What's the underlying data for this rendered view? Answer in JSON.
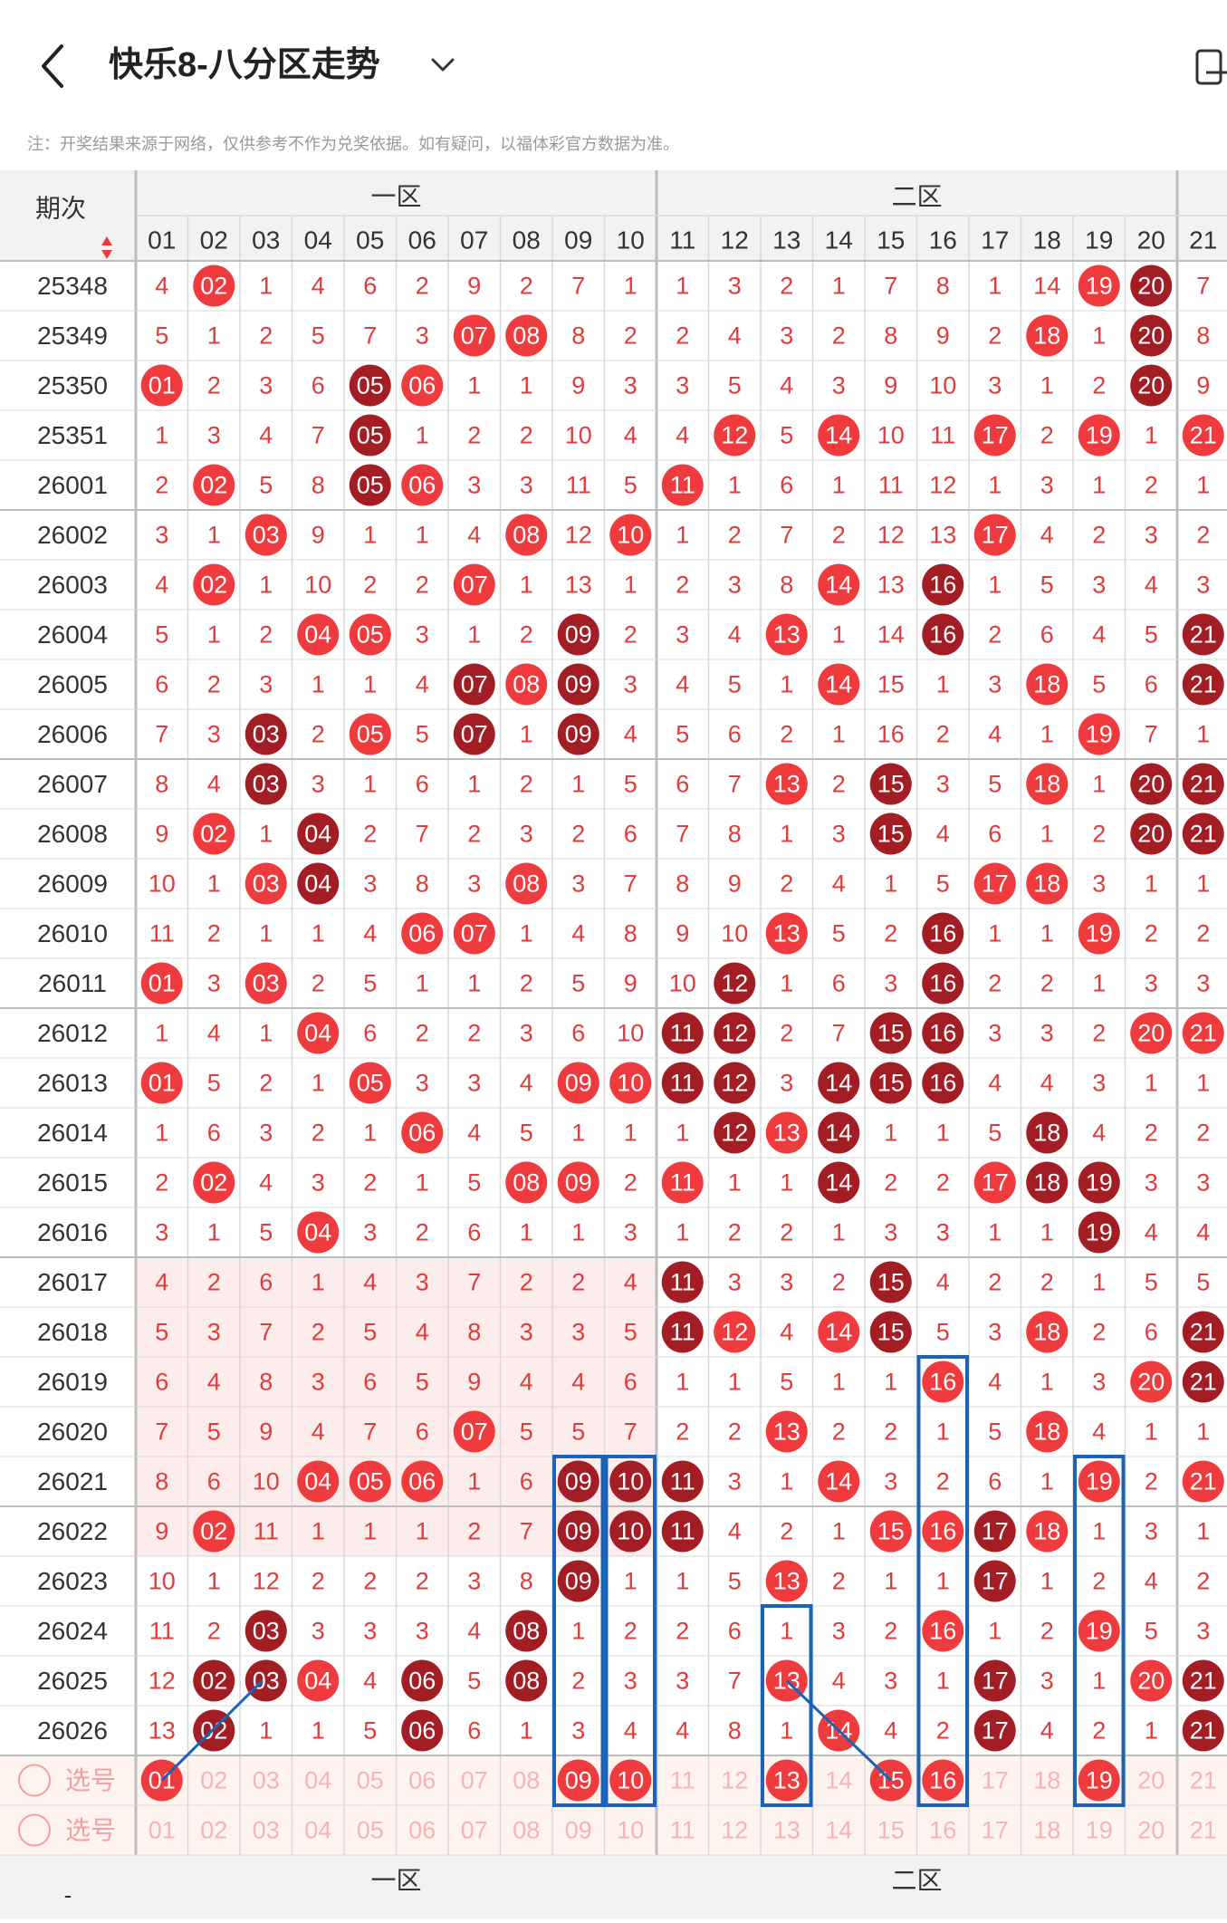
{
  "header": {
    "title": "快乐8-八分区走势",
    "note": "注：开奖结果来源于网络，仅供参考不作为兑奖依据。如有疑问，以福体彩官方数据为准。"
  },
  "icons": {
    "back": "back-arrow-icon",
    "dropdown": "chevron-down-icon",
    "share": "share-icon"
  },
  "colors": {
    "red": "#ef3b3e",
    "dark_red": "#a21e24",
    "pale_red": "#fdecec",
    "header_bg": "#f2f2f2",
    "grid_line": "#d9d9d9",
    "box_blue": "#1a63b8",
    "text_red": "#e03c3c"
  },
  "table": {
    "period_header": "期次",
    "zones": [
      "一区",
      "二区"
    ],
    "columns": [
      "01",
      "02",
      "03",
      "04",
      "05",
      "06",
      "07",
      "08",
      "09",
      "10",
      "11",
      "12",
      "13",
      "14",
      "15",
      "16",
      "17",
      "18",
      "19",
      "20",
      "21"
    ],
    "rows": [
      {
        "period": "25348",
        "cells": [
          "4",
          "02",
          "1",
          "4",
          "6",
          "2",
          "9",
          "2",
          "7",
          "1",
          "1",
          "3",
          "2",
          "1",
          "7",
          "8",
          "1",
          "14",
          "19",
          "20",
          "7"
        ],
        "hits": [
          "02",
          "19",
          "20"
        ]
      },
      {
        "period": "25349",
        "cells": [
          "5",
          "1",
          "2",
          "5",
          "7",
          "3",
          "07",
          "08",
          "8",
          "2",
          "2",
          "4",
          "3",
          "2",
          "8",
          "9",
          "2",
          "18",
          "1",
          "20",
          "8"
        ],
        "hits": [
          "07",
          "08",
          "18",
          "20"
        ]
      },
      {
        "period": "25350",
        "cells": [
          "01",
          "2",
          "3",
          "6",
          "05",
          "06",
          "1",
          "1",
          "9",
          "3",
          "3",
          "5",
          "4",
          "3",
          "9",
          "10",
          "3",
          "1",
          "2",
          "20",
          "9"
        ],
        "hits": [
          "01",
          "05",
          "06",
          "20"
        ]
      },
      {
        "period": "25351",
        "cells": [
          "1",
          "3",
          "4",
          "7",
          "05",
          "1",
          "2",
          "2",
          "10",
          "4",
          "4",
          "12",
          "5",
          "14",
          "10",
          "11",
          "17",
          "2",
          "19",
          "1",
          "21"
        ],
        "hits": [
          "05",
          "12",
          "14",
          "17",
          "19",
          "21"
        ]
      },
      {
        "period": "26001",
        "cells": [
          "2",
          "02",
          "5",
          "8",
          "05",
          "06",
          "3",
          "3",
          "11",
          "5",
          "11",
          "1",
          "6",
          "1",
          "11",
          "12",
          "1",
          "3",
          "1",
          "2",
          "1"
        ],
        "hits": [
          "02",
          "05",
          "06",
          "11"
        ]
      },
      {
        "period": "26002",
        "cells": [
          "3",
          "1",
          "03",
          "9",
          "1",
          "1",
          "4",
          "08",
          "12",
          "10",
          "1",
          "2",
          "7",
          "2",
          "12",
          "13",
          "17",
          "4",
          "2",
          "3",
          "2"
        ],
        "hits": [
          "03",
          "08",
          "10",
          "17"
        ]
      },
      {
        "period": "26003",
        "cells": [
          "4",
          "02",
          "1",
          "10",
          "2",
          "2",
          "07",
          "1",
          "13",
          "1",
          "2",
          "3",
          "8",
          "14",
          "13",
          "16",
          "1",
          "5",
          "3",
          "4",
          "3"
        ],
        "hits": [
          "02",
          "07",
          "14",
          "16"
        ]
      },
      {
        "period": "26004",
        "cells": [
          "5",
          "1",
          "2",
          "04",
          "05",
          "3",
          "1",
          "2",
          "09",
          "2",
          "3",
          "4",
          "13",
          "1",
          "14",
          "16",
          "2",
          "6",
          "4",
          "5",
          "21"
        ],
        "hits": [
          "04",
          "05",
          "09",
          "13",
          "16",
          "21"
        ]
      },
      {
        "period": "26005",
        "cells": [
          "6",
          "2",
          "3",
          "1",
          "1",
          "4",
          "07",
          "08",
          "09",
          "3",
          "4",
          "5",
          "1",
          "14",
          "15",
          "1",
          "3",
          "18",
          "5",
          "6",
          "21"
        ],
        "hits": [
          "07",
          "08",
          "09",
          "14",
          "18",
          "21"
        ]
      },
      {
        "period": "26006",
        "cells": [
          "7",
          "3",
          "03",
          "2",
          "05",
          "5",
          "07",
          "1",
          "09",
          "4",
          "5",
          "6",
          "2",
          "1",
          "16",
          "2",
          "4",
          "1",
          "19",
          "7",
          "1"
        ],
        "hits": [
          "03",
          "05",
          "07",
          "09",
          "19"
        ]
      },
      {
        "period": "26007",
        "cells": [
          "8",
          "4",
          "03",
          "3",
          "1",
          "6",
          "1",
          "2",
          "1",
          "5",
          "6",
          "7",
          "13",
          "2",
          "15",
          "3",
          "5",
          "18",
          "1",
          "20",
          "21"
        ],
        "hits": [
          "03",
          "13",
          "15",
          "18",
          "20",
          "21"
        ]
      },
      {
        "period": "26008",
        "cells": [
          "9",
          "02",
          "1",
          "04",
          "2",
          "7",
          "2",
          "3",
          "2",
          "6",
          "7",
          "8",
          "1",
          "3",
          "15",
          "4",
          "6",
          "1",
          "2",
          "20",
          "21"
        ],
        "hits": [
          "02",
          "04",
          "15",
          "20",
          "21"
        ]
      },
      {
        "period": "26009",
        "cells": [
          "10",
          "1",
          "03",
          "04",
          "3",
          "8",
          "3",
          "08",
          "3",
          "7",
          "8",
          "9",
          "2",
          "4",
          "1",
          "5",
          "17",
          "18",
          "3",
          "1",
          "1"
        ],
        "hits": [
          "03",
          "04",
          "08",
          "17",
          "18"
        ]
      },
      {
        "period": "26010",
        "cells": [
          "11",
          "2",
          "1",
          "1",
          "4",
          "06",
          "07",
          "1",
          "4",
          "8",
          "9",
          "10",
          "13",
          "5",
          "2",
          "16",
          "1",
          "1",
          "19",
          "2",
          "2"
        ],
        "hits": [
          "06",
          "07",
          "13",
          "16",
          "19"
        ]
      },
      {
        "period": "26011",
        "cells": [
          "01",
          "3",
          "03",
          "2",
          "5",
          "1",
          "1",
          "2",
          "5",
          "9",
          "10",
          "12",
          "1",
          "6",
          "3",
          "16",
          "2",
          "2",
          "1",
          "3",
          "3"
        ],
        "hits": [
          "01",
          "03",
          "12",
          "16"
        ]
      },
      {
        "period": "26012",
        "cells": [
          "1",
          "4",
          "1",
          "04",
          "6",
          "2",
          "2",
          "3",
          "6",
          "10",
          "11",
          "12",
          "2",
          "7",
          "15",
          "16",
          "3",
          "3",
          "2",
          "20",
          "21"
        ],
        "hits": [
          "04",
          "11",
          "12",
          "15",
          "16",
          "20",
          "21"
        ]
      },
      {
        "period": "26013",
        "cells": [
          "01",
          "5",
          "2",
          "1",
          "05",
          "3",
          "3",
          "4",
          "09",
          "10",
          "11",
          "12",
          "3",
          "14",
          "15",
          "16",
          "4",
          "4",
          "3",
          "1",
          "1"
        ],
        "hits": [
          "01",
          "05",
          "09",
          "10",
          "11",
          "12",
          "14",
          "15",
          "16"
        ]
      },
      {
        "period": "26014",
        "cells": [
          "1",
          "6",
          "3",
          "2",
          "1",
          "06",
          "4",
          "5",
          "1",
          "1",
          "1",
          "12",
          "13",
          "14",
          "1",
          "1",
          "5",
          "18",
          "4",
          "2",
          "2"
        ],
        "hits": [
          "06",
          "12",
          "13",
          "14",
          "18"
        ]
      },
      {
        "period": "26015",
        "cells": [
          "2",
          "02",
          "4",
          "3",
          "2",
          "1",
          "5",
          "08",
          "09",
          "2",
          "11",
          "1",
          "1",
          "14",
          "2",
          "2",
          "17",
          "18",
          "19",
          "3",
          "3"
        ],
        "hits": [
          "02",
          "08",
          "09",
          "11",
          "14",
          "17",
          "18",
          "19"
        ]
      },
      {
        "period": "26016",
        "cells": [
          "3",
          "1",
          "5",
          "04",
          "3",
          "2",
          "6",
          "1",
          "1",
          "3",
          "1",
          "2",
          "2",
          "1",
          "3",
          "3",
          "1",
          "1",
          "19",
          "4",
          "4"
        ],
        "hits": [
          "04",
          "19"
        ]
      },
      {
        "period": "26017",
        "cells": [
          "4",
          "2",
          "6",
          "1",
          "4",
          "3",
          "7",
          "2",
          "2",
          "4",
          "11",
          "3",
          "3",
          "2",
          "15",
          "4",
          "2",
          "2",
          "1",
          "5",
          "5"
        ],
        "hits": [
          "11",
          "15"
        ]
      },
      {
        "period": "26018",
        "cells": [
          "5",
          "3",
          "7",
          "2",
          "5",
          "4",
          "8",
          "3",
          "3",
          "5",
          "11",
          "12",
          "4",
          "14",
          "15",
          "5",
          "3",
          "18",
          "2",
          "6",
          "21"
        ],
        "hits": [
          "11",
          "12",
          "14",
          "15",
          "18",
          "21"
        ]
      },
      {
        "period": "26019",
        "cells": [
          "6",
          "4",
          "8",
          "3",
          "6",
          "5",
          "9",
          "4",
          "4",
          "6",
          "1",
          "1",
          "5",
          "1",
          "1",
          "16",
          "4",
          "1",
          "3",
          "20",
          "21"
        ],
        "hits": [
          "16",
          "20",
          "21"
        ]
      },
      {
        "period": "26020",
        "cells": [
          "7",
          "5",
          "9",
          "4",
          "7",
          "6",
          "07",
          "5",
          "5",
          "7",
          "2",
          "2",
          "13",
          "2",
          "2",
          "1",
          "5",
          "18",
          "4",
          "1",
          "1"
        ],
        "hits": [
          "07",
          "13",
          "18"
        ]
      },
      {
        "period": "26021",
        "cells": [
          "8",
          "6",
          "10",
          "04",
          "05",
          "06",
          "1",
          "6",
          "09",
          "10",
          "11",
          "3",
          "1",
          "14",
          "3",
          "2",
          "6",
          "1",
          "19",
          "2",
          "21"
        ],
        "hits": [
          "04",
          "05",
          "06",
          "09",
          "10",
          "11",
          "14",
          "19",
          "21"
        ]
      },
      {
        "period": "26022",
        "cells": [
          "9",
          "02",
          "11",
          "1",
          "1",
          "1",
          "2",
          "7",
          "09",
          "10",
          "11",
          "4",
          "2",
          "1",
          "15",
          "16",
          "17",
          "18",
          "1",
          "3",
          "1"
        ],
        "hits": [
          "02",
          "09",
          "10",
          "11",
          "15",
          "16",
          "17",
          "18"
        ]
      },
      {
        "period": "26023",
        "cells": [
          "10",
          "1",
          "12",
          "2",
          "2",
          "2",
          "3",
          "8",
          "09",
          "1",
          "1",
          "5",
          "13",
          "2",
          "1",
          "1",
          "17",
          "1",
          "2",
          "4",
          "2"
        ],
        "hits": [
          "09",
          "13",
          "17"
        ]
      },
      {
        "period": "26024",
        "cells": [
          "11",
          "2",
          "03",
          "3",
          "3",
          "3",
          "4",
          "08",
          "1",
          "2",
          "2",
          "6",
          "1",
          "3",
          "2",
          "16",
          "1",
          "2",
          "19",
          "5",
          "3"
        ],
        "hits": [
          "03",
          "08",
          "16",
          "19"
        ]
      },
      {
        "period": "26025",
        "cells": [
          "12",
          "02",
          "03",
          "04",
          "4",
          "06",
          "5",
          "08",
          "2",
          "3",
          "3",
          "7",
          "13",
          "4",
          "3",
          "1",
          "17",
          "3",
          "1",
          "20",
          "21"
        ],
        "hits": [
          "02",
          "03",
          "04",
          "06",
          "08",
          "13",
          "17",
          "20",
          "21"
        ]
      },
      {
        "period": "26026",
        "cells": [
          "13",
          "02",
          "1",
          "1",
          "5",
          "06",
          "6",
          "1",
          "3",
          "4",
          "4",
          "8",
          "1",
          "14",
          "4",
          "2",
          "17",
          "4",
          "2",
          "1",
          "21"
        ],
        "hits": [
          "02",
          "06",
          "14",
          "17",
          "21"
        ]
      }
    ],
    "select_rows": [
      {
        "label": "选号",
        "selected": [
          "01",
          "09",
          "10",
          "13",
          "15",
          "16",
          "19"
        ]
      },
      {
        "label": "选号",
        "selected": []
      }
    ],
    "footer_zones": [
      "一区",
      "二区"
    ],
    "footer_left": "-"
  }
}
